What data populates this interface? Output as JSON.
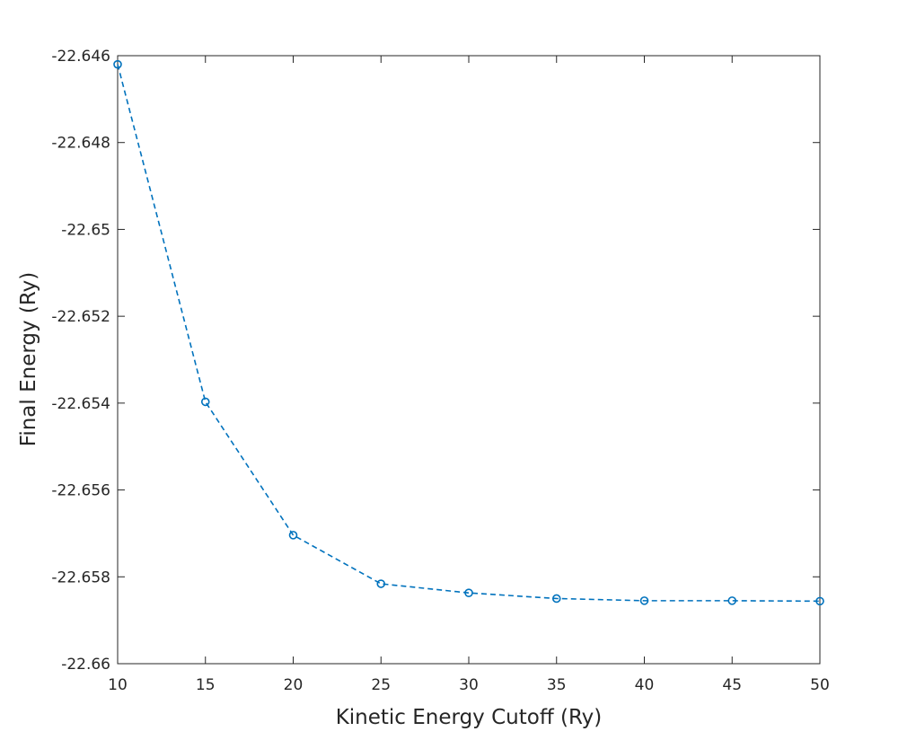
{
  "chart_data": {
    "type": "line",
    "title": "",
    "xlabel": "Kinetic Energy Cutoff (Ry)",
    "ylabel": "Final Energy (Ry)",
    "xlim": [
      10,
      50
    ],
    "ylim": [
      -22.66,
      -22.646
    ],
    "xticks": [
      10,
      15,
      20,
      25,
      30,
      35,
      40,
      45,
      50
    ],
    "xtick_labels": [
      "10",
      "15",
      "20",
      "25",
      "30",
      "35",
      "40",
      "45",
      "50"
    ],
    "yticks": [
      -22.646,
      -22.648,
      -22.65,
      -22.652,
      -22.654,
      -22.656,
      -22.658,
      -22.66
    ],
    "ytick_labels": [
      "-22.646",
      "-22.648",
      "-22.65",
      "-22.652",
      "-22.654",
      "-22.656",
      "-22.658",
      "-22.66"
    ],
    "grid": false,
    "line_style": "dashed",
    "marker": "circle",
    "color": "#0072BD",
    "series": [
      {
        "x": [
          10,
          15,
          20,
          25,
          30,
          35,
          40,
          45,
          50
        ],
        "y": [
          -22.6462,
          -22.65397,
          -22.65704,
          -22.65816,
          -22.65837,
          -22.6585,
          -22.65855,
          -22.65855,
          -22.65856
        ]
      }
    ]
  }
}
